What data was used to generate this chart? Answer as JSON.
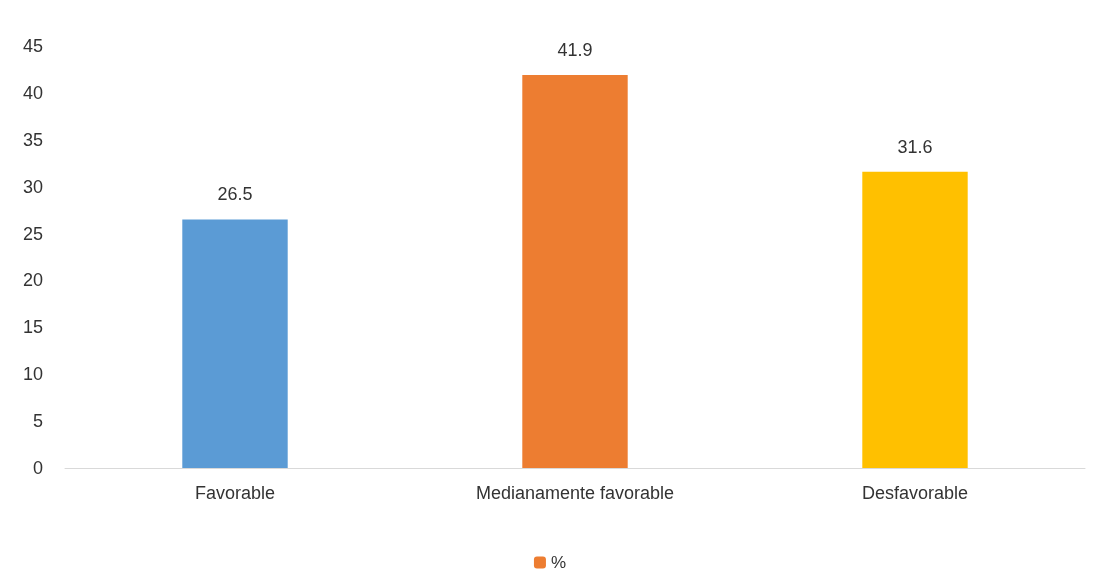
{
  "chart_data": {
    "type": "bar",
    "categories": [
      "Favorable",
      "Medianamente favorable",
      "Desfavorable"
    ],
    "series": [
      {
        "name": "%",
        "color": "#ed7d31",
        "colors": [
          "#5b9bd5",
          "#ed7d31",
          "#ffc000"
        ],
        "values": [
          26.5,
          41.9,
          31.6
        ]
      }
    ],
    "ylim": [
      0,
      45
    ],
    "yticks": [
      0,
      5,
      10,
      15,
      20,
      25,
      30,
      35,
      40,
      45
    ],
    "grid": false,
    "legend": "bottom",
    "data_labels": true
  }
}
